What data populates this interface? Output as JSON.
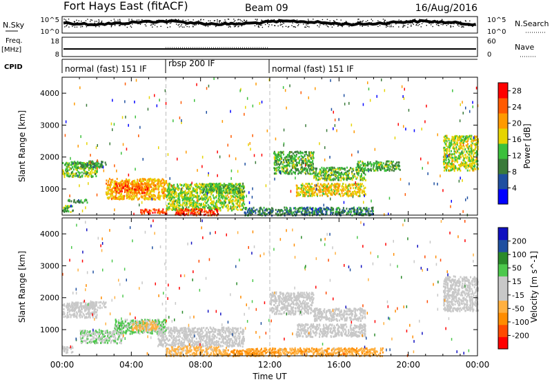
{
  "header": {
    "station": "Fort Hays East (fitACF)",
    "beam": "Beam 09",
    "date": "16/Aug/2016"
  },
  "top_panels": {
    "nsky_label": "N.Sky",
    "nsearch_label": "N.Search",
    "noise_ticks": [
      "10^5",
      "10^0"
    ],
    "freq_label": "Freq.",
    "freq_unit": "[MHz]",
    "freq_ticks": [
      "18",
      "8"
    ],
    "nave_label": "Nave",
    "nave_ticks": [
      "60",
      "0"
    ],
    "cpid_label": "CPID",
    "cpid_segments": [
      {
        "label": "normal (fast) 151 IF",
        "start_hr": 0,
        "end_hr": 6
      },
      {
        "label": "rbsp 200 IF",
        "start_hr": 6,
        "end_hr": 12
      },
      {
        "label": "normal (fast) 151 IF",
        "start_hr": 12,
        "end_hr": 24
      }
    ]
  },
  "colors": {
    "power_scale": [
      "#0000ff",
      "#1f4fa0",
      "#3a7a3a",
      "#3cc03c",
      "#e6d400",
      "#ff9a00",
      "#ff5a00",
      "#ff0000"
    ],
    "velocity_scale": [
      "#ff0000",
      "#ff4a00",
      "#ff8c00",
      "#ffb040",
      "#c8c8c8",
      "#c8c8c8",
      "#4cc84c",
      "#2a8a2a",
      "#1f4fa0",
      "#1010c0"
    ]
  },
  "chart_data": [
    {
      "type": "heatmap",
      "name": "power",
      "ylabel": "Slant Range [km]",
      "xlabel": "",
      "colorbar_label": "Power [dB]",
      "colorbar_ticks": [
        4,
        8,
        12,
        16,
        20,
        24,
        28
      ],
      "colorbar_range": [
        0,
        30
      ],
      "xlim_hr": [
        0,
        24
      ],
      "ylim_km": [
        180,
        4500
      ],
      "yticks": [
        1000,
        2000,
        3000,
        4000
      ],
      "regions": [
        {
          "t0": 0.0,
          "t1": 2.0,
          "r0": 1400,
          "r1": 1850,
          "val": 14
        },
        {
          "t0": 0.3,
          "t1": 1.5,
          "r0": 600,
          "r1": 700,
          "val": 10
        },
        {
          "t0": 0.5,
          "t1": 2.5,
          "r0": 1700,
          "r1": 1900,
          "val": 11
        },
        {
          "t0": 2.5,
          "t1": 6.0,
          "r0": 700,
          "r1": 1350,
          "val": 19
        },
        {
          "t0": 3.0,
          "t1": 5.0,
          "r0": 900,
          "r1": 1200,
          "val": 24
        },
        {
          "t0": 4.5,
          "t1": 6.0,
          "r0": 250,
          "r1": 400,
          "val": 26
        },
        {
          "t0": 6.0,
          "t1": 10.5,
          "r0": 350,
          "r1": 1200,
          "val": 15
        },
        {
          "t0": 6.5,
          "t1": 9.0,
          "r0": 200,
          "r1": 400,
          "val": 26
        },
        {
          "t0": 8.0,
          "t1": 10.5,
          "r0": 900,
          "r1": 1200,
          "val": 12
        },
        {
          "t0": 0.0,
          "t1": 0.6,
          "r0": 300,
          "r1": 500,
          "val": 13
        },
        {
          "t0": 12.2,
          "t1": 14.5,
          "r0": 1500,
          "r1": 2200,
          "val": 12
        },
        {
          "t0": 13.5,
          "t1": 17.5,
          "r0": 800,
          "r1": 1200,
          "val": 18
        },
        {
          "t0": 14.5,
          "t1": 17.5,
          "r0": 1300,
          "r1": 1700,
          "val": 13
        },
        {
          "t0": 10.5,
          "t1": 18.0,
          "r0": 200,
          "r1": 450,
          "val": 9
        },
        {
          "t0": 17.0,
          "t1": 19.5,
          "r0": 1600,
          "r1": 1900,
          "val": 12
        },
        {
          "t0": 22.0,
          "t1": 24.0,
          "r0": 1600,
          "r1": 2700,
          "val": 16
        }
      ]
    },
    {
      "type": "heatmap",
      "name": "velocity",
      "ylabel": "Slant Range [km]",
      "xlabel": "Time UT",
      "colorbar_label": "Velocity [m s^-1]",
      "colorbar_ticks": [
        -200,
        -100,
        -50,
        -15,
        15,
        50,
        100,
        200
      ],
      "colorbar_range": [
        -250,
        250
      ],
      "xlim_hr": [
        0,
        24
      ],
      "ylim_km": [
        180,
        4500
      ],
      "yticks": [
        1000,
        2000,
        3000,
        4000
      ],
      "xtick_labels": [
        "00:00",
        "04:00",
        "08:00",
        "12:00",
        "16:00",
        "20:00",
        "00:00"
      ],
      "regions": [
        {
          "t0": 0.0,
          "t1": 2.0,
          "r0": 1400,
          "r1": 1850,
          "val": 0
        },
        {
          "t0": 0.5,
          "t1": 2.5,
          "r0": 1700,
          "r1": 1900,
          "val": 5
        },
        {
          "t0": 0.0,
          "t1": 0.6,
          "r0": 300,
          "r1": 500,
          "val": 0
        },
        {
          "t0": 1.0,
          "t1": 3.5,
          "r0": 600,
          "r1": 1000,
          "val": 40
        },
        {
          "t0": 3.0,
          "t1": 6.0,
          "r0": 900,
          "r1": 1350,
          "val": 60
        },
        {
          "t0": 4.0,
          "t1": 5.5,
          "r0": 1000,
          "r1": 1300,
          "val": -60
        },
        {
          "t0": 5.5,
          "t1": 10.5,
          "r0": 500,
          "r1": 1100,
          "val": 0
        },
        {
          "t0": 6.0,
          "t1": 9.5,
          "r0": 200,
          "r1": 500,
          "val": -70
        },
        {
          "t0": 9.5,
          "t1": 11.5,
          "r0": 200,
          "r1": 400,
          "val": -120
        },
        {
          "t0": 12.0,
          "t1": 14.5,
          "r0": 1500,
          "r1": 2200,
          "val": 0
        },
        {
          "t0": 13.5,
          "t1": 17.5,
          "r0": 800,
          "r1": 1200,
          "val": 0
        },
        {
          "t0": 14.5,
          "t1": 17.5,
          "r0": 1300,
          "r1": 1700,
          "val": 5
        },
        {
          "t0": 10.5,
          "t1": 18.5,
          "r0": 200,
          "r1": 450,
          "val": -90
        },
        {
          "t0": 22.0,
          "t1": 24.0,
          "r0": 1600,
          "r1": 2700,
          "val": 0
        }
      ]
    }
  ]
}
